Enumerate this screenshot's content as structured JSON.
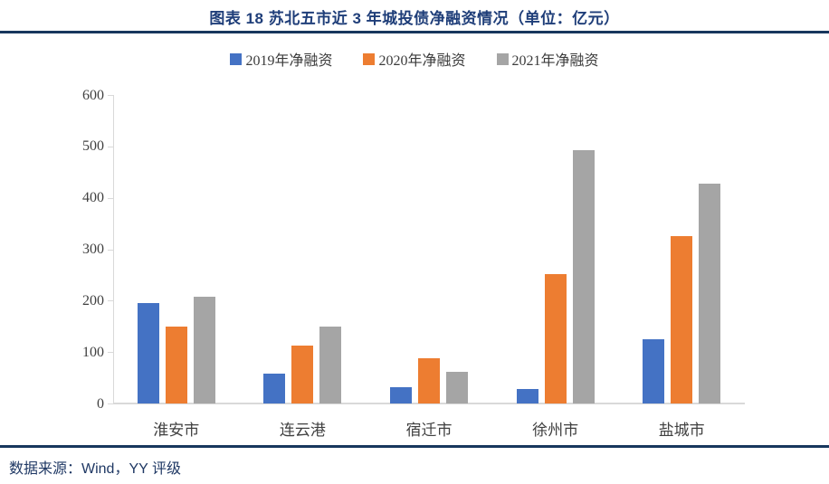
{
  "header": {
    "title": "图表 18 苏北五市近 3 年城投债净融资情况（单位：亿元）"
  },
  "chart_data": {
    "type": "bar",
    "title": "图表 18 苏北五市近 3 年城投债净融资情况（单位：亿元）",
    "categories": [
      "淮安市",
      "连云港",
      "宿迁市",
      "徐州市",
      "盐城市"
    ],
    "series": [
      {
        "name": "2019年净融资",
        "color": "#4472C4",
        "values": [
          195,
          58,
          32,
          28,
          125
        ]
      },
      {
        "name": "2020年净融资",
        "color": "#ED7D31",
        "values": [
          150,
          113,
          88,
          252,
          325
        ]
      },
      {
        "name": "2021年净融资",
        "color": "#A5A5A5",
        "values": [
          208,
          149,
          61,
          492,
          428
        ]
      }
    ],
    "xlabel": "",
    "ylabel": "",
    "ylim": [
      0,
      600
    ],
    "yticks": [
      0,
      100,
      200,
      300,
      400,
      500,
      600
    ],
    "grid": false,
    "legend_position": "top"
  },
  "footer": {
    "source": "数据来源：Wind，YY 评级"
  },
  "colors": {
    "title_navy": "#1F3E79",
    "rule_navy": "#17375D",
    "axis_gray": "#D9D9D9",
    "label_gray": "#404040"
  }
}
